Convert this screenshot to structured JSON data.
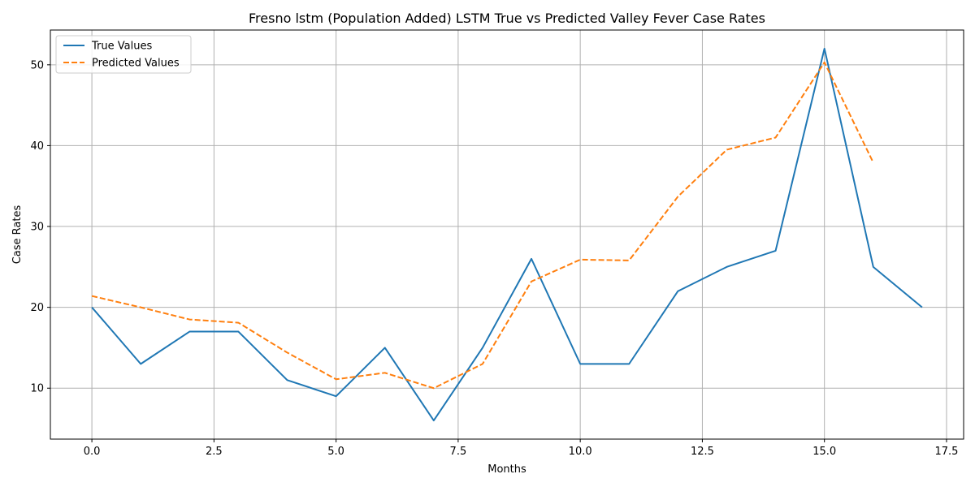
{
  "chart_data": {
    "type": "line",
    "title": "Fresno lstm (Population Added) LSTM True vs Predicted Valley Fever Case Rates",
    "xlabel": "Months",
    "ylabel": "Case Rates",
    "xlim": [
      -0.85,
      17.85
    ],
    "ylim": [
      3.7,
      54.3
    ],
    "xticks": [
      0.0,
      2.5,
      5.0,
      7.5,
      10.0,
      12.5,
      15.0,
      17.5
    ],
    "xtick_labels": [
      "0.0",
      "2.5",
      "5.0",
      "7.5",
      "10.0",
      "12.5",
      "15.0",
      "17.5"
    ],
    "yticks": [
      10,
      20,
      30,
      40,
      50
    ],
    "ytick_labels": [
      "10",
      "20",
      "30",
      "40",
      "50"
    ],
    "grid": true,
    "legend_position": "top-left",
    "series": [
      {
        "name": "True Values",
        "color": "#1f77b4",
        "style": "solid",
        "x": [
          0,
          1,
          2,
          3,
          4,
          5,
          6,
          7,
          8,
          9,
          10,
          11,
          12,
          13,
          14,
          15,
          16,
          17
        ],
        "values": [
          20,
          13,
          17,
          17,
          11,
          9,
          15,
          6,
          15,
          26,
          13,
          13,
          22,
          25,
          27,
          52,
          25,
          20
        ]
      },
      {
        "name": "Predicted Values",
        "color": "#ff7f0e",
        "style": "dashed",
        "x": [
          0,
          1,
          2,
          3,
          4,
          5,
          6,
          7,
          8,
          9,
          10,
          11,
          12,
          13,
          14,
          15,
          16
        ],
        "values": [
          21.4,
          20.0,
          18.5,
          18.1,
          14.4,
          11.1,
          11.9,
          10.0,
          13.0,
          23.2,
          25.9,
          25.8,
          33.7,
          39.5,
          41.0,
          50.3,
          37.9
        ]
      }
    ]
  }
}
